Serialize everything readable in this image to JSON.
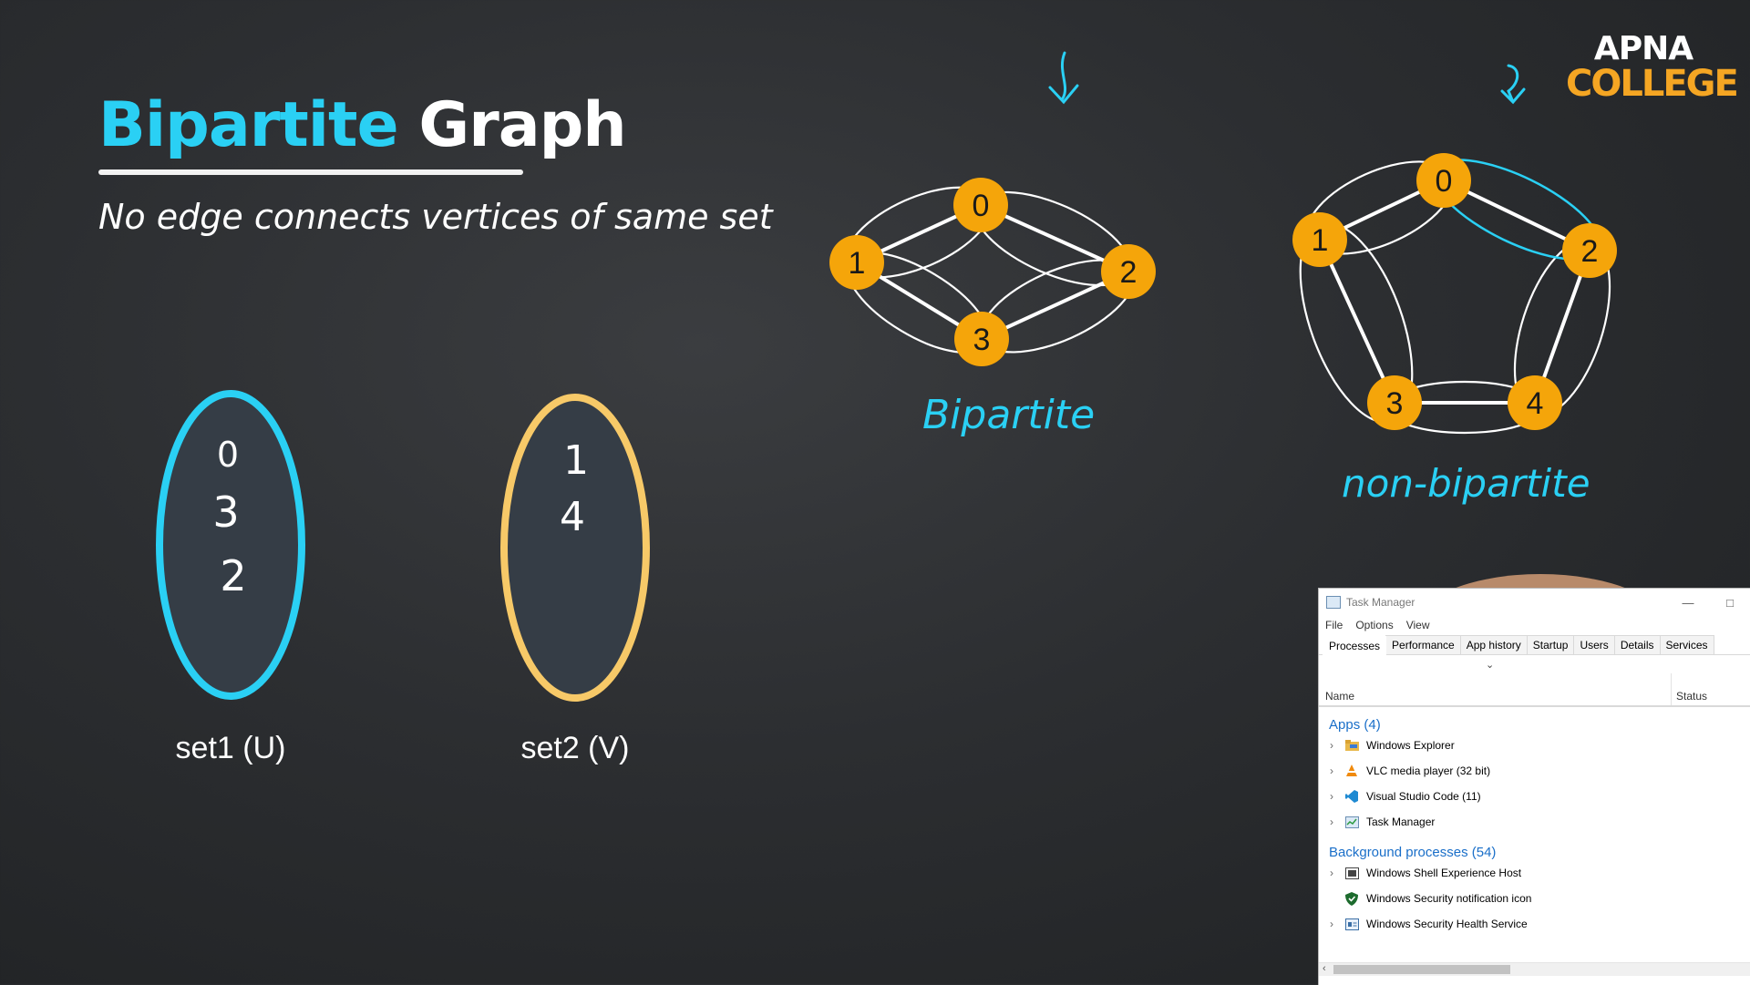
{
  "slide": {
    "title_part1": "Bipartite",
    "title_part2": "Graph",
    "subtitle": "No edge connects vertices of same set",
    "logo_line1": "APNA",
    "logo_line2": "COLLEGE",
    "set1": {
      "values": [
        "0",
        "3",
        "2"
      ],
      "label": "set1 (U)",
      "color": "#2ad0f4"
    },
    "set2": {
      "values": [
        "1",
        "4"
      ],
      "label": "set2 (V)",
      "color": "#f7c968"
    },
    "graph1": {
      "nodes": [
        "0",
        "1",
        "2",
        "3"
      ],
      "label": "Bipartite"
    },
    "graph2": {
      "nodes": [
        "0",
        "1",
        "2",
        "3",
        "4"
      ],
      "label": "non-bipartite"
    },
    "colors": {
      "node": "#f5a50a",
      "accent": "#2ad0f4",
      "board": "#2c2e31"
    }
  },
  "taskmanager": {
    "title": "Task Manager",
    "menu": [
      "File",
      "Options",
      "View"
    ],
    "tabs": [
      "Processes",
      "Performance",
      "App history",
      "Startup",
      "Users",
      "Details",
      "Services"
    ],
    "active_tab": "Processes",
    "columns": {
      "name": "Name",
      "status": "Status"
    },
    "apps_header": "Apps (4)",
    "apps": [
      "Windows Explorer",
      "VLC media player (32 bit)",
      "Visual Studio Code (11)",
      "Task Manager"
    ],
    "bg_header": "Background processes (54)",
    "bg": [
      "Windows Shell Experience Host",
      "Windows Security notification icon",
      "Windows Security Health Service"
    ]
  }
}
